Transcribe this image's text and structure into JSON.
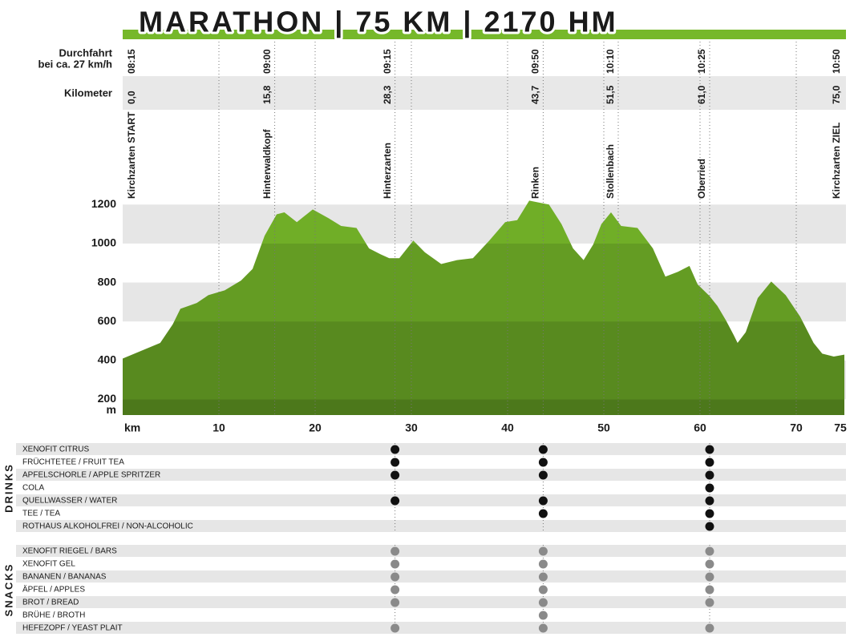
{
  "chart_data": {
    "type": "area",
    "title": "MARATHON | 75 KM | 2170 HM",
    "color": "#76b82a",
    "x": [
      0,
      3.9,
      5.2,
      6,
      7.7,
      8.9,
      10.6,
      12.3,
      13.5,
      14.75,
      16,
      16.8,
      18.1,
      19.75,
      21.4,
      22.7,
      24.3,
      25.6,
      26.8,
      27.7,
      28.75,
      30.2,
      31.4,
      33.1,
      34.75,
      36.4,
      38.1,
      39.75,
      41,
      42.25,
      44.3,
      45.6,
      46.8,
      47.9,
      48.9,
      49.75,
      50.75,
      51.8,
      53.5,
      55.1,
      56.4,
      57.7,
      58.9,
      59.75,
      61,
      61.8,
      62.7,
      63.5,
      63.9,
      64.75,
      66,
      67.4,
      68.9,
      70.4,
      71.8,
      72.7,
      73.9,
      75
    ],
    "values": [
      410,
      490,
      585,
      665,
      695,
      735,
      760,
      810,
      870,
      1040,
      1150,
      1160,
      1110,
      1175,
      1130,
      1090,
      1080,
      975,
      945,
      925,
      925,
      1015,
      955,
      895,
      915,
      925,
      1015,
      1110,
      1120,
      1220,
      1200,
      1100,
      975,
      915,
      995,
      1100,
      1160,
      1090,
      1080,
      975,
      830,
      855,
      885,
      790,
      730,
      680,
      605,
      530,
      490,
      545,
      720,
      805,
      735,
      625,
      490,
      435,
      420,
      430
    ],
    "xlim": [
      0,
      75
    ],
    "ylim": [
      120,
      1230
    ],
    "xticks": [
      10,
      20,
      30,
      40,
      50,
      60,
      70,
      75
    ],
    "yticks": [
      200,
      400,
      600,
      800,
      1000,
      1200
    ],
    "xlabel": "km",
    "ylabel": "m",
    "grid": true,
    "bands": true
  },
  "stations": {
    "time_label": [
      "Durchfahrt",
      "bei ca. 27 km/h"
    ],
    "km_label": "Kilometer",
    "items": [
      {
        "name": "Kirchzarten START",
        "time": "08:15",
        "km": {
          "value": 0,
          "label": "0,0"
        },
        "aid": false
      },
      {
        "name": "Hinterwaldkopf",
        "time": "09:00",
        "km": {
          "value": 15.8,
          "label": "15,8"
        },
        "aid": false
      },
      {
        "name": "Hinterzarten",
        "time": "09:15",
        "km": {
          "value": 28.3,
          "label": "28,3"
        },
        "aid": true
      },
      {
        "name": "Rinken",
        "time": "09:50",
        "km": {
          "value": 43.7,
          "label": "43,7"
        },
        "aid": true
      },
      {
        "name": "Stollenbach",
        "time": "10:10",
        "km": {
          "value": 51.5,
          "label": "51,5"
        },
        "aid": false
      },
      {
        "name": "Oberried",
        "time": "10:25",
        "km": {
          "value": 61.0,
          "label": "61,0"
        },
        "aid": true
      },
      {
        "name": "Kirchzarten ZIEL",
        "time": "10:50",
        "km": {
          "value": 75.0,
          "label": "75,0"
        },
        "aid": false
      }
    ]
  },
  "supplies": {
    "groups": [
      {
        "name": "DRINKS",
        "color": "#111111",
        "items": [
          {
            "name": "XENOFIT CITRUS",
            "available": [
              true,
              true,
              true
            ]
          },
          {
            "name": "FRÜCHTETEE / FRUIT TEA",
            "available": [
              true,
              true,
              true
            ]
          },
          {
            "name": "APFELSCHORLE / APPLE SPRITZER",
            "available": [
              true,
              true,
              true
            ]
          },
          {
            "name": "COLA",
            "available": [
              false,
              false,
              true
            ]
          },
          {
            "name": "QUELLWASSER / WATER",
            "available": [
              true,
              true,
              true
            ]
          },
          {
            "name": "TEE / TEA",
            "available": [
              false,
              true,
              true
            ]
          },
          {
            "name": "ROTHAUS ALKOHOLFREI / NON-ALCOHOLIC",
            "available": [
              false,
              false,
              true
            ]
          }
        ]
      },
      {
        "name": "SNACKS",
        "color": "#8a8a8a",
        "items": [
          {
            "name": "XENOFIT RIEGEL / BARS",
            "available": [
              true,
              true,
              true
            ]
          },
          {
            "name": "XENOFIT GEL",
            "available": [
              true,
              true,
              true
            ]
          },
          {
            "name": "BANANEN / BANANAS",
            "available": [
              true,
              true,
              true
            ]
          },
          {
            "name": "ÄPFEL / APPLES",
            "available": [
              true,
              true,
              true
            ]
          },
          {
            "name": "BROT / BREAD",
            "available": [
              true,
              true,
              true
            ]
          },
          {
            "name": "BRÜHE / BROTH",
            "available": [
              false,
              true,
              false
            ]
          },
          {
            "name": "HEFEZOPF / YEAST PLAIT",
            "available": [
              true,
              true,
              true
            ]
          }
        ]
      }
    ]
  }
}
